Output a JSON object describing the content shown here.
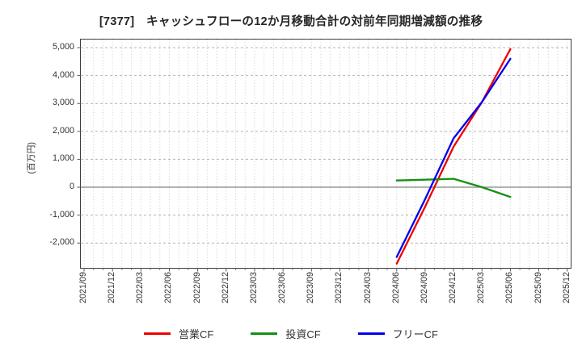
{
  "chart_data": {
    "type": "line",
    "title": "[7377]　キャッシュフローの12か月移動合計の対前年同期増減額の推移",
    "ylabel": "(百万円)",
    "x_tick_labels": [
      "2021/09",
      "2021/12",
      "2022/03",
      "2022/06",
      "2022/09",
      "2022/12",
      "2023/03",
      "2023/06",
      "2023/09",
      "2023/12",
      "2024/03",
      "2024/06",
      "2024/09",
      "2024/12",
      "2025/03",
      "2025/06",
      "2025/09",
      "2025/12"
    ],
    "y_ticks": [
      5000,
      4000,
      3000,
      2000,
      1000,
      0,
      -1000,
      -2000
    ],
    "ylim": [
      -2890,
      5290
    ],
    "grid": true,
    "legend_position": "bottom",
    "series": [
      {
        "name": "営業CF",
        "color": "#ee0000",
        "x": [
          "2024/06",
          "2024/09",
          "2024/12",
          "2025/03",
          "2025/06"
        ],
        "values": [
          -2740,
          -700,
          1450,
          3050,
          4950
        ]
      },
      {
        "name": "投資CF",
        "color": "#159015",
        "x": [
          "2024/06",
          "2024/09",
          "2024/12",
          "2025/03",
          "2025/06"
        ],
        "values": [
          240,
          270,
          300,
          0,
          -350
        ]
      },
      {
        "name": "フリーCF",
        "color": "#0000ee",
        "x": [
          "2024/06",
          "2024/09",
          "2024/12",
          "2025/03",
          "2025/06"
        ],
        "values": [
          -2500,
          -430,
          1750,
          3050,
          4600
        ]
      }
    ],
    "colors": {
      "grid_minor": "#cccccc",
      "grid_major": "#b3b3b3",
      "zero_line": "#858585",
      "frame": "#3d3d3d",
      "text": "#333333"
    }
  }
}
